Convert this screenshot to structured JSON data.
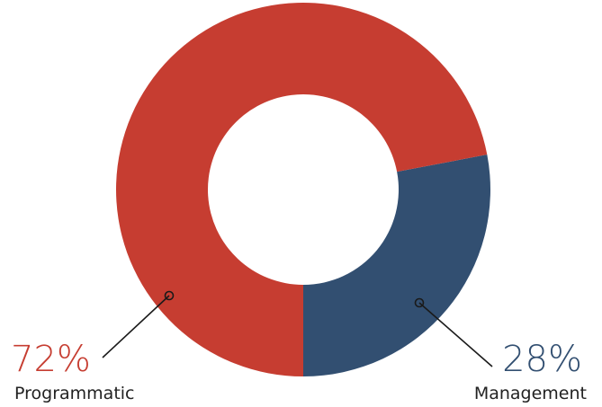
{
  "chart_data": {
    "type": "pie",
    "style": "donut",
    "categories": [
      "Management",
      "Programmatic"
    ],
    "values": [
      28,
      72
    ],
    "value_labels": [
      "28%",
      "72%"
    ],
    "colors": [
      "#324f71",
      "#c63d31"
    ],
    "start": "12 o'clock",
    "direction": "counter-clockwise from 6 o'clock for Management",
    "grid": false,
    "legend": "none"
  }
}
